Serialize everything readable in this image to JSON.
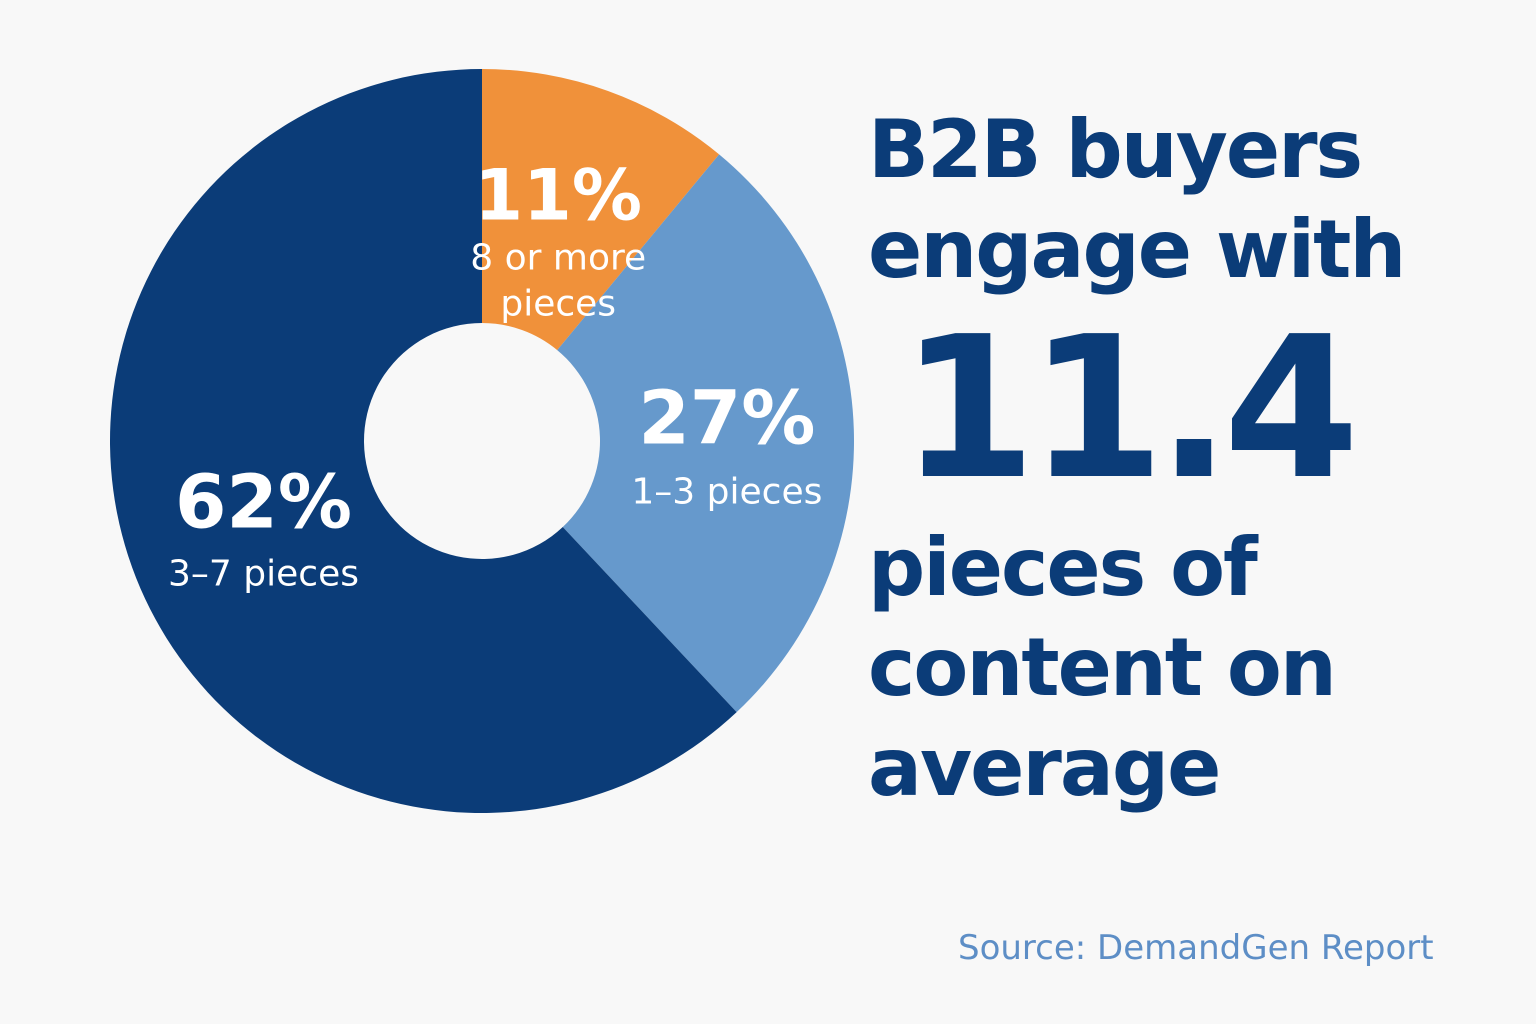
{
  "headline": {
    "line1": "B2B buyers",
    "line2": "engage with",
    "big_number": "11.4",
    "line3": "pieces of",
    "line4": "content on",
    "line5": "average"
  },
  "source": "Source: DemandGen Report",
  "chart_data": {
    "type": "pie",
    "variant": "donut",
    "slices": [
      {
        "label": "8 or more pieces",
        "label_lines": [
          "8 or more",
          "pieces"
        ],
        "value": 11,
        "display": "11%",
        "color": "#f0913a"
      },
      {
        "label": "1–3 pieces",
        "label_lines": [
          "1–3 pieces"
        ],
        "value": 27,
        "display": "27%",
        "color": "#6699cc"
      },
      {
        "label": "3–7 pieces",
        "label_lines": [
          "3–7 pieces"
        ],
        "value": 62,
        "display": "62%",
        "color": "#0b3c78"
      }
    ],
    "start_angle": "12 o'clock",
    "direction": "clockwise"
  }
}
